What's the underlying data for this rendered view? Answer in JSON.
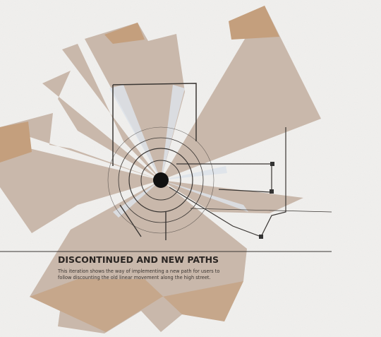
{
  "title": "DISCONTINUED AND NEW PATHS",
  "description": {
    "lines": [
      "This iteration shows the way of implementing a new path for users to",
      "follow discounting the old linear movement along the high street."
    ]
  }
}
